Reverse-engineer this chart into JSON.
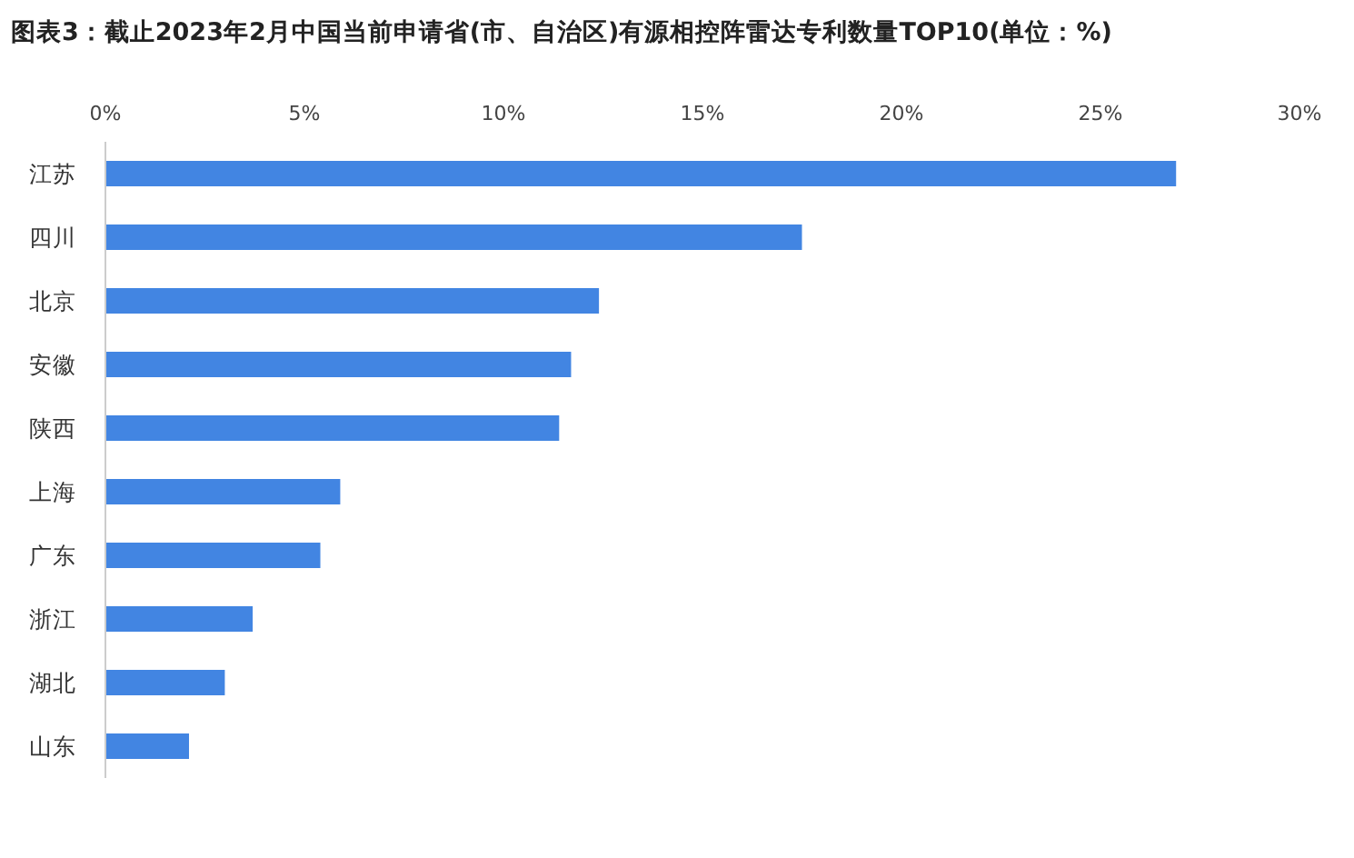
{
  "chart_data": {
    "type": "bar",
    "orientation": "horizontal",
    "title": "图表3：截止2023年2月中国当前申请省(市、自治区)有源相控阵雷达专利数量TOP10(单位：%)",
    "categories": [
      "江苏",
      "四川",
      "北京",
      "安徽",
      "陕西",
      "上海",
      "广东",
      "浙江",
      "湖北",
      "山东"
    ],
    "values": [
      26.9,
      17.5,
      12.4,
      11.7,
      11.4,
      5.9,
      5.4,
      3.7,
      3.0,
      2.1
    ],
    "color": "#4285e2",
    "xlim": [
      0,
      30
    ],
    "xticks": [
      {
        "value": 0,
        "label": "0%"
      },
      {
        "value": 5,
        "label": "5%"
      },
      {
        "value": 10,
        "label": "10%"
      },
      {
        "value": 15,
        "label": "15%"
      },
      {
        "value": 20,
        "label": "20%"
      },
      {
        "value": 25,
        "label": "25%"
      },
      {
        "value": 30,
        "label": "30%"
      }
    ],
    "grid": false
  }
}
